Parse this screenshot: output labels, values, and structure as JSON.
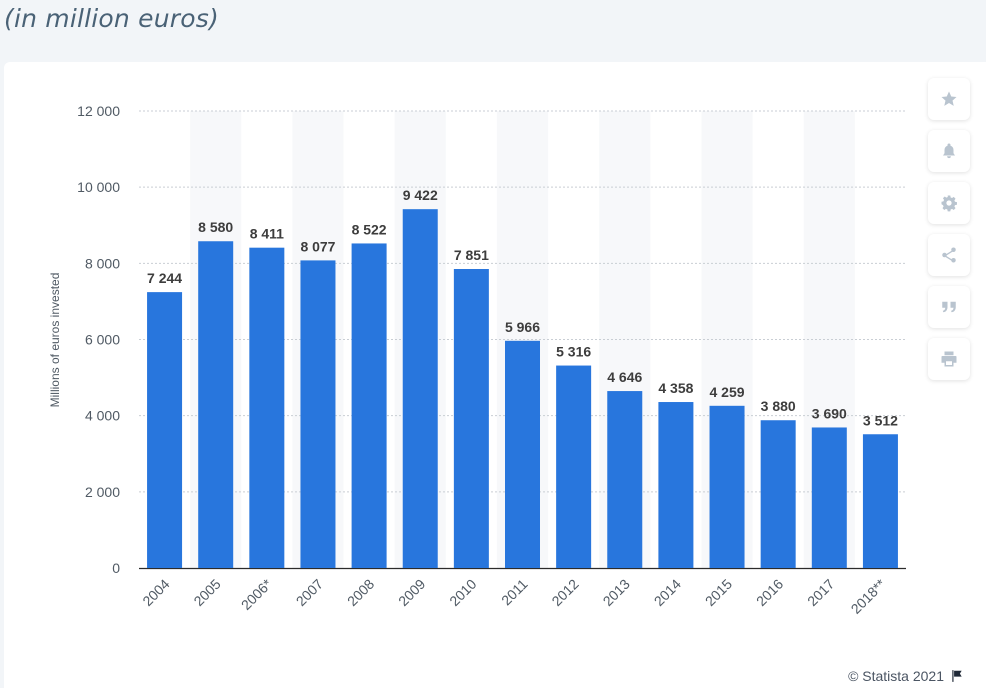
{
  "header": {
    "subtitle": "(in million euros)"
  },
  "toolbar": {
    "buttons": [
      {
        "icon": "star-icon"
      },
      {
        "icon": "bell-icon"
      },
      {
        "icon": "gear-icon"
      },
      {
        "icon": "share-icon"
      },
      {
        "icon": "quote-icon"
      },
      {
        "icon": "print-icon"
      }
    ]
  },
  "footer": {
    "credit": "© Statista 2021"
  },
  "chart_data": {
    "type": "bar",
    "categories": [
      "2004",
      "2005",
      "2006*",
      "2007",
      "2008",
      "2009",
      "2010",
      "2011",
      "2012",
      "2013",
      "2014",
      "2015",
      "2016",
      "2017",
      "2018**"
    ],
    "values": [
      7244,
      8580,
      8411,
      8077,
      8522,
      9422,
      7851,
      5966,
      5316,
      4646,
      4358,
      4259,
      3880,
      3690,
      3512
    ],
    "value_labels": [
      "7 244",
      "8 580",
      "8 411",
      "8 077",
      "8 522",
      "9 422",
      "7 851",
      "5 966",
      "5 316",
      "4 646",
      "4 358",
      "4 259",
      "3 880",
      "3 690",
      "3 512"
    ],
    "ylabel": "Millions of euros invested",
    "ylim": [
      0,
      12000
    ],
    "yticks": [
      0,
      2000,
      4000,
      6000,
      8000,
      10000,
      12000
    ],
    "ytick_labels": [
      "0",
      "2 000",
      "4 000",
      "6 000",
      "8 000",
      "10 000",
      "12 000"
    ],
    "grid": true,
    "bar_color": "#2876dd",
    "band_color": "#f7f8fa"
  }
}
